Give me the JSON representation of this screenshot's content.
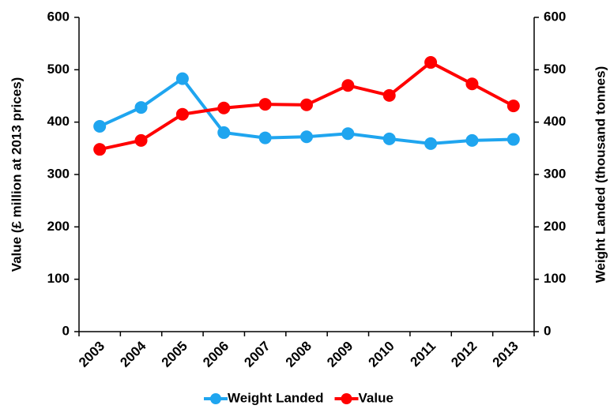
{
  "chart_data": {
    "type": "line",
    "y_label": "Value (£ million at 2013 prices)",
    "y2_label": "Weight Landed (thousand tonnes)",
    "categories": [
      "2003",
      "2004",
      "2005",
      "2006",
      "2007",
      "2008",
      "2009",
      "2010",
      "2011",
      "2012",
      "2013"
    ],
    "series": [
      {
        "name": "Weight Landed",
        "color": "#1fa5ef",
        "axis": "y2",
        "values": [
          392,
          428,
          483,
          380,
          370,
          372,
          378,
          368,
          359,
          365,
          367
        ]
      },
      {
        "name": "Value",
        "color": "#ff0000",
        "values": [
          348,
          365,
          415,
          427,
          434,
          433,
          470,
          451,
          514,
          473,
          431
        ]
      }
    ],
    "ylim": [
      0,
      600
    ],
    "yticks": [
      0,
      100,
      200,
      300,
      400,
      500,
      600
    ],
    "y2lim": [
      0,
      600
    ],
    "y2ticks": [
      0,
      100,
      200,
      300,
      400,
      500,
      600
    ],
    "legend": "bottom"
  }
}
